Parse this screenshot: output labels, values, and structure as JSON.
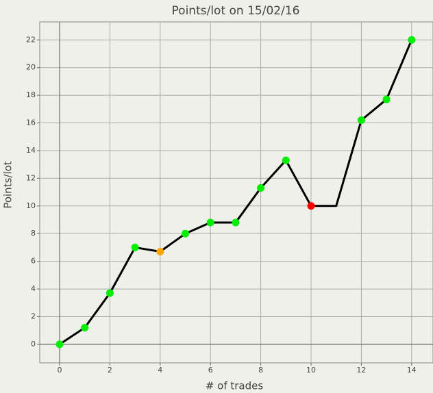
{
  "chart_data": {
    "type": "line",
    "title": "Points/lot on 15/02/16",
    "x_label": "# of trades",
    "y_label": "Points/lot",
    "x": [
      0,
      1,
      2,
      3,
      4,
      5,
      6,
      7,
      8,
      9,
      10,
      11,
      12,
      13,
      14
    ],
    "series": [
      {
        "color": "#000000",
        "values": [
          0,
          1.2,
          3.7,
          7.0,
          6.7,
          8.0,
          8.8,
          8.8,
          11.3,
          13.3,
          10.0,
          10.0,
          16.2,
          17.7,
          22
        ],
        "marker_colors": [
          "#00ee00",
          "#00ee00",
          "#00ee00",
          "#00ee00",
          "#ffa500",
          "#00ee00",
          "#00ee00",
          "#00ee00",
          "#00ee00",
          "#00ee00",
          "#ff0000",
          null,
          "#00ee00",
          "#00ee00",
          "#00ee00"
        ]
      }
    ],
    "xlim": [
      -0.79,
      14.85
    ],
    "ylim": [
      -1.34,
      23.3
    ],
    "xticks": [
      0,
      2,
      4,
      6,
      8,
      10,
      12,
      14
    ],
    "yticks": [
      0,
      2,
      4,
      6,
      8,
      10,
      12,
      14,
      16,
      18,
      20,
      22
    ],
    "grid": true
  }
}
